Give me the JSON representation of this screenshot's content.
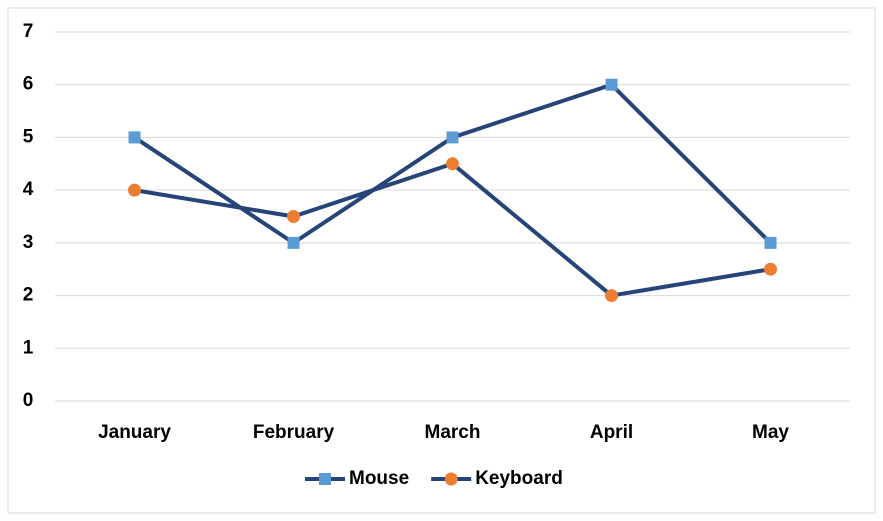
{
  "chart_data": {
    "type": "line",
    "categories": [
      "January",
      "February",
      "March",
      "April",
      "May"
    ],
    "series": [
      {
        "name": "Mouse",
        "color": "#264478",
        "marker_color": "#5b9bd5",
        "marker": "square",
        "values": [
          5,
          3,
          5,
          6,
          3
        ]
      },
      {
        "name": "Keyboard",
        "color": "#264478",
        "marker_color": "#ed7d31",
        "marker": "circle",
        "values": [
          4,
          3.5,
          4.5,
          2,
          2.5
        ]
      }
    ],
    "ylim": [
      0,
      7
    ],
    "yticks": [
      0,
      1,
      2,
      3,
      4,
      5,
      6,
      7
    ],
    "grid": true,
    "legend": "bottom"
  }
}
